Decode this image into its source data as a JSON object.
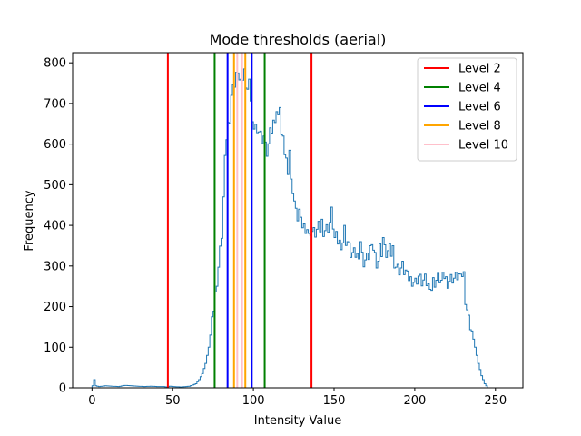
{
  "chart_data": {
    "type": "histogram",
    "title": "Mode thresholds (aerial)",
    "xlabel": "Intensity Value",
    "ylabel": "Frequency",
    "xlim": [
      -12,
      267
    ],
    "ylim": [
      0,
      825
    ],
    "xticks": [
      0,
      50,
      100,
      150,
      200,
      250
    ],
    "yticks": [
      0,
      100,
      200,
      300,
      400,
      500,
      600,
      700,
      800
    ],
    "grid": false,
    "legend_position": "top-right",
    "histogram_color": "#1f77b4",
    "histogram_anchors": [
      [
        0,
        5
      ],
      [
        1,
        20
      ],
      [
        2,
        5
      ],
      [
        4,
        3
      ],
      [
        8,
        5
      ],
      [
        12,
        4
      ],
      [
        16,
        3
      ],
      [
        20,
        6
      ],
      [
        24,
        5
      ],
      [
        28,
        4
      ],
      [
        32,
        3
      ],
      [
        36,
        4
      ],
      [
        40,
        3
      ],
      [
        44,
        3
      ],
      [
        46,
        2
      ],
      [
        48,
        4
      ],
      [
        50,
        3
      ],
      [
        55,
        2
      ],
      [
        60,
        4
      ],
      [
        64,
        10
      ],
      [
        66,
        20
      ],
      [
        68,
        35
      ],
      [
        70,
        60
      ],
      [
        72,
        100
      ],
      [
        74,
        160
      ],
      [
        76,
        230
      ],
      [
        78,
        300
      ],
      [
        80,
        380
      ],
      [
        82,
        560
      ],
      [
        83,
        620
      ],
      [
        84,
        650
      ],
      [
        85,
        700
      ],
      [
        86,
        680
      ],
      [
        87,
        740
      ],
      [
        88,
        760
      ],
      [
        89,
        780
      ],
      [
        90,
        785
      ],
      [
        91,
        770
      ],
      [
        92,
        760
      ],
      [
        93,
        745
      ],
      [
        94,
        760
      ],
      [
        95,
        735
      ],
      [
        96,
        720
      ],
      [
        97,
        700
      ],
      [
        98,
        700
      ],
      [
        100,
        640
      ],
      [
        102,
        640
      ],
      [
        104,
        620
      ],
      [
        106,
        600
      ],
      [
        108,
        580
      ],
      [
        110,
        610
      ],
      [
        112,
        650
      ],
      [
        114,
        680
      ],
      [
        116,
        640
      ],
      [
        118,
        600
      ],
      [
        120,
        560
      ],
      [
        122,
        520
      ],
      [
        124,
        490
      ],
      [
        126,
        430
      ],
      [
        128,
        410
      ],
      [
        130,
        400
      ],
      [
        132,
        395
      ],
      [
        134,
        390
      ],
      [
        136,
        385
      ],
      [
        138,
        380
      ],
      [
        140,
        395
      ],
      [
        142,
        385
      ],
      [
        144,
        390
      ],
      [
        146,
        395
      ],
      [
        148,
        420
      ],
      [
        150,
        380
      ],
      [
        152,
        360
      ],
      [
        154,
        355
      ],
      [
        156,
        365
      ],
      [
        158,
        360
      ],
      [
        160,
        330
      ],
      [
        162,
        330
      ],
      [
        164,
        325
      ],
      [
        166,
        340
      ],
      [
        168,
        310
      ],
      [
        170,
        320
      ],
      [
        172,
        330
      ],
      [
        174,
        345
      ],
      [
        176,
        310
      ],
      [
        178,
        320
      ],
      [
        180,
        350
      ],
      [
        182,
        330
      ],
      [
        184,
        340
      ],
      [
        186,
        320
      ],
      [
        188,
        300
      ],
      [
        190,
        290
      ],
      [
        192,
        300
      ],
      [
        194,
        275
      ],
      [
        196,
        270
      ],
      [
        198,
        265
      ],
      [
        200,
        260
      ],
      [
        202,
        275
      ],
      [
        204,
        260
      ],
      [
        206,
        265
      ],
      [
        208,
        250
      ],
      [
        210,
        265
      ],
      [
        212,
        260
      ],
      [
        214,
        270
      ],
      [
        216,
        265
      ],
      [
        218,
        275
      ],
      [
        220,
        260
      ],
      [
        222,
        270
      ],
      [
        224,
        270
      ],
      [
        226,
        275
      ],
      [
        228,
        280
      ],
      [
        230,
        280
      ],
      [
        231,
        220
      ],
      [
        233,
        170
      ],
      [
        235,
        140
      ],
      [
        237,
        100
      ],
      [
        239,
        60
      ],
      [
        241,
        30
      ],
      [
        243,
        10
      ],
      [
        245,
        0
      ],
      [
        255,
        0
      ]
    ],
    "histogram_spikes": [
      [
        85,
        650
      ],
      [
        86,
        720
      ],
      [
        88,
        740
      ],
      [
        90,
        775
      ],
      [
        94,
        785
      ],
      [
        97,
        760
      ],
      [
        106,
        620
      ],
      [
        108,
        570
      ],
      [
        110,
        640
      ],
      [
        116,
        690
      ],
      [
        118,
        620
      ],
      [
        122,
        585
      ],
      [
        128,
        440
      ],
      [
        134,
        380
      ],
      [
        142,
        415
      ],
      [
        148,
        445
      ],
      [
        150,
        370
      ],
      [
        156,
        400
      ],
      [
        166,
        360
      ],
      [
        172,
        350
      ],
      [
        178,
        355
      ],
      [
        180,
        370
      ],
      [
        186,
        350
      ],
      [
        194,
        290
      ],
      [
        200,
        270
      ],
      [
        210,
        240
      ],
      [
        216,
        265
      ],
      [
        228,
        280
      ]
    ],
    "threshold_lines": [
      {
        "level": "Level 2",
        "color": "#ff0000",
        "x": [
          47,
          136
        ]
      },
      {
        "level": "Level 4",
        "color": "#008000",
        "x": [
          76,
          107
        ]
      },
      {
        "level": "Level 6",
        "color": "#0000ff",
        "x": [
          84,
          99
        ]
      },
      {
        "level": "Level 8",
        "color": "#ffa500",
        "x": [
          88,
          95
        ]
      },
      {
        "level": "Level 10",
        "color": "#ffc0cb",
        "x": [
          90,
          93
        ]
      }
    ],
    "legend": [
      {
        "label": "Level 2",
        "color": "#ff0000"
      },
      {
        "label": "Level 4",
        "color": "#008000"
      },
      {
        "label": "Level 6",
        "color": "#0000ff"
      },
      {
        "label": "Level 8",
        "color": "#ffa500"
      },
      {
        "label": "Level 10",
        "color": "#ffc0cb"
      }
    ]
  }
}
